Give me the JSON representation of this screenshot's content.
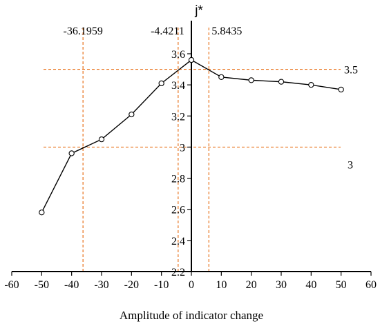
{
  "chart_data": {
    "type": "line",
    "title": "",
    "ylabel": "j*",
    "xlabel": "Amplitude of indicator change",
    "xlim": [
      -60,
      60
    ],
    "ylim": [
      2.2,
      3.6
    ],
    "x_ticks": [
      -60,
      -50,
      -40,
      -30,
      -20,
      -10,
      0,
      10,
      20,
      30,
      40,
      50,
      60
    ],
    "y_ticks": [
      2.2,
      2.4,
      2.6,
      2.8,
      3,
      3.2,
      3.4,
      3.6
    ],
    "x_tick_labels": [
      "-60",
      "-50",
      "-40",
      "-30",
      "-20",
      "-10",
      "0",
      "10",
      "20",
      "30",
      "40",
      "50",
      "60"
    ],
    "y_tick_labels": [
      "2.2",
      "2.4",
      "2.6",
      "2.8",
      "3",
      "3.2",
      "3.4",
      "3.6"
    ],
    "grid": false,
    "series": [
      {
        "x": [
          -50,
          -40,
          -30,
          -20,
          -10,
          0,
          10,
          20,
          30,
          40,
          50
        ],
        "y": [
          2.58,
          2.96,
          3.05,
          3.21,
          3.41,
          3.56,
          3.45,
          3.43,
          3.42,
          3.4,
          3.37
        ],
        "color": "#000000",
        "marker": "open-circle"
      }
    ],
    "reference_lines": {
      "horizontal": [
        {
          "y": 3.5,
          "label": "3.5",
          "color": "#e8711a"
        },
        {
          "y": 3.0,
          "label": "3",
          "color": "#e8711a"
        }
      ],
      "vertical": [
        {
          "x": -36.1959,
          "label": "-36.1959",
          "color": "#e8711a"
        },
        {
          "x": -4.4211,
          "label": "-4.4211",
          "color": "#e8711a"
        },
        {
          "x": 5.8435,
          "label": "5.8435",
          "color": "#e8711a"
        }
      ]
    }
  }
}
